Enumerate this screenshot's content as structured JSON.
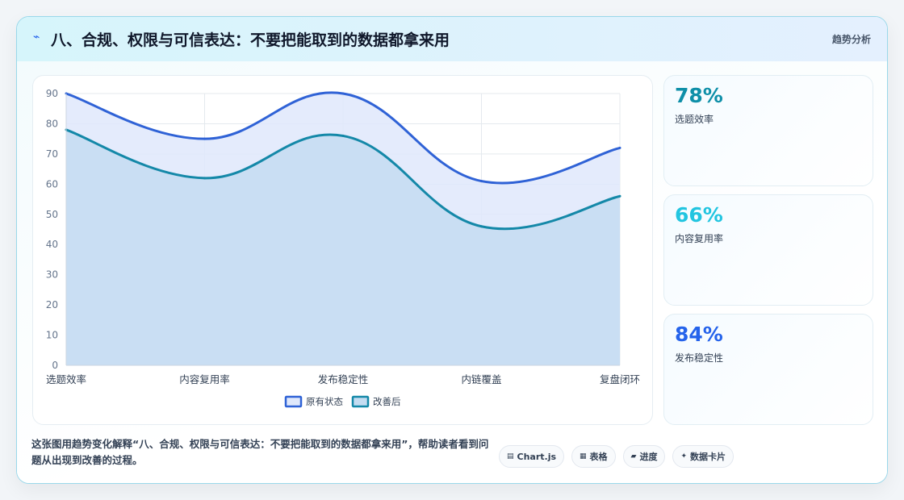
{
  "header": {
    "logo_glyph": "⌁",
    "title": "八、合规、权限与可信表达：不要把能取到的数据都拿来用",
    "tag": "趋势分析"
  },
  "chart_data": {
    "type": "area",
    "categories": [
      "选题效率",
      "内容复用率",
      "发布稳定性",
      "内链覆盖",
      "复盘闭环"
    ],
    "series": [
      {
        "name": "原有状态",
        "values": [
          90,
          75,
          90,
          61,
          72
        ],
        "color": "#2f62d6",
        "fill": "#dfe8fb"
      },
      {
        "name": "改善后",
        "values": [
          78,
          62,
          76,
          46,
          56
        ],
        "color": "#1488a8",
        "fill": "#c4dcf1"
      }
    ],
    "ylim": [
      0,
      90
    ],
    "yticks": [
      0,
      10,
      20,
      30,
      40,
      50,
      60,
      70,
      80,
      90
    ],
    "grid": true,
    "legend": "bottom"
  },
  "stats": [
    {
      "value": "78%",
      "label": "选题效率",
      "color": "#0e8fa8"
    },
    {
      "value": "66%",
      "label": "内容复用率",
      "color": "#22c5e0"
    },
    {
      "value": "84%",
      "label": "发布稳定性",
      "color": "#2563eb"
    }
  ],
  "caption": "这张图用趋势变化解释“八、合规、权限与可信表达：不要把能取到的数据都拿来用”，帮助读者看到问题从出现到改善的过程。",
  "pills": [
    {
      "icon": "▤",
      "label": "Chart.js",
      "icon_name": "chart-icon"
    },
    {
      "icon": "▦",
      "label": "表格",
      "icon_name": "table-icon"
    },
    {
      "icon": "▰",
      "label": "进度",
      "icon_name": "progress-icon"
    },
    {
      "icon": "✦",
      "label": "数据卡片",
      "icon_name": "sparkle-icon"
    }
  ]
}
